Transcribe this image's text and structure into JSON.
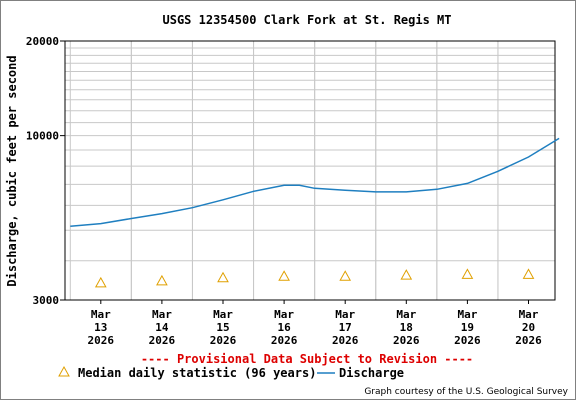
{
  "chart_data": {
    "type": "line",
    "title": "USGS 12354500 Clark Fork at St. Regis MT",
    "ylabel": "Discharge, cubic feet per second",
    "xlabel": "",
    "scale": "log",
    "ylim": [
      3000,
      20000
    ],
    "y_tick_labels": [
      "20000",
      "10000",
      "3000"
    ],
    "x_ticks": [
      {
        "month": "Mar",
        "day": "13",
        "year": "2026"
      },
      {
        "month": "Mar",
        "day": "14",
        "year": "2026"
      },
      {
        "month": "Mar",
        "day": "15",
        "year": "2026"
      },
      {
        "month": "Mar",
        "day": "16",
        "year": "2026"
      },
      {
        "month": "Mar",
        "day": "17",
        "year": "2026"
      },
      {
        "month": "Mar",
        "day": "18",
        "year": "2026"
      },
      {
        "month": "Mar",
        "day": "19",
        "year": "2026"
      },
      {
        "month": "Mar",
        "day": "20",
        "year": "2026"
      }
    ],
    "discharge": {
      "name": "Discharge",
      "color": "#1f7fc0",
      "x": [
        "2026-03-12 12:00",
        "2026-03-13 00:00",
        "2026-03-13 12:00",
        "2026-03-14 00:00",
        "2026-03-14 12:00",
        "2026-03-15 00:00",
        "2026-03-15 12:00",
        "2026-03-16 00:00",
        "2026-03-16 06:00",
        "2026-03-16 12:00",
        "2026-03-17 00:00",
        "2026-03-17 12:00",
        "2026-03-18 00:00",
        "2026-03-18 12:00",
        "2026-03-19 00:00",
        "2026-03-19 12:00",
        "2026-03-20 00:00",
        "2026-03-20 12:00"
      ],
      "y": [
        5150,
        5250,
        5450,
        5650,
        5900,
        6250,
        6650,
        6950,
        6950,
        6800,
        6700,
        6620,
        6620,
        6750,
        7050,
        7700,
        8550,
        9800
      ]
    },
    "median": {
      "name": "Median daily statistic (96 years)",
      "color": "#e0a000",
      "x": [
        "2026-03-13",
        "2026-03-14",
        "2026-03-15",
        "2026-03-16",
        "2026-03-17",
        "2026-03-18",
        "2026-03-19",
        "2026-03-20"
      ],
      "y": [
        3400,
        3450,
        3530,
        3570,
        3570,
        3600,
        3620,
        3620
      ]
    },
    "grid": true,
    "legend": "bottom"
  },
  "notice": "---- Provisional Data Subject to Revision ----",
  "notice_color": "#dd0000",
  "credit": "Graph courtesy of the U.S. Geological Survey"
}
